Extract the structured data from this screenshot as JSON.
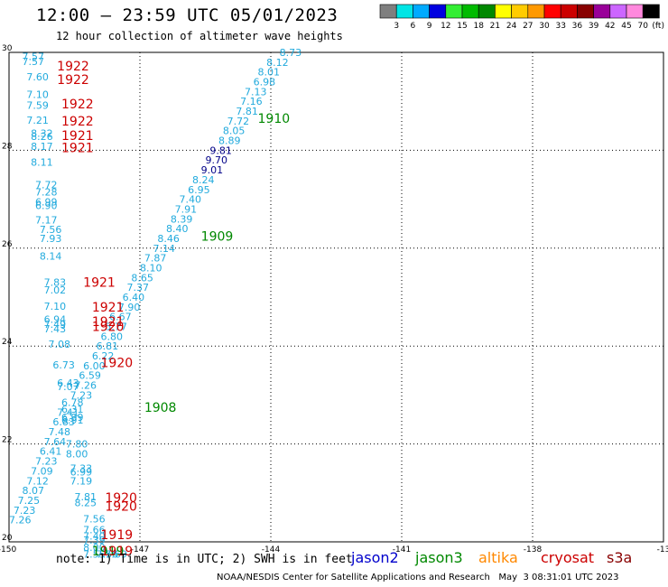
{
  "title": "12:00 – 23:59 UTC 05/01/2023",
  "subtitle": "12 hour collection of altimeter wave heights",
  "legend": {
    "unit_label": "(ft)",
    "bins": [
      {
        "label": "3",
        "color": "#7f7f7f"
      },
      {
        "label": "6",
        "color": "#00e5e5"
      },
      {
        "label": "9",
        "color": "#00aaff"
      },
      {
        "label": "12",
        "color": "#0000e0"
      },
      {
        "label": "15",
        "color": "#33ee33"
      },
      {
        "label": "18",
        "color": "#00bb00"
      },
      {
        "label": "21",
        "color": "#008800"
      },
      {
        "label": "24",
        "color": "#ffff00"
      },
      {
        "label": "27",
        "color": "#ffcc00"
      },
      {
        "label": "30",
        "color": "#ff9900"
      },
      {
        "label": "33",
        "color": "#ff0000"
      },
      {
        "label": "36",
        "color": "#cc0000"
      },
      {
        "label": "39",
        "color": "#880000"
      },
      {
        "label": "42",
        "color": "#990099"
      },
      {
        "label": "45",
        "color": "#cc66ff"
      },
      {
        "label": "70",
        "color": "#ff88dd"
      },
      {
        "label": "",
        "color": "#000000"
      }
    ]
  },
  "axes": {
    "lon_ticks": [
      "-150",
      "-147",
      "-144",
      "-141",
      "-138",
      "-13"
    ],
    "lat_ticks": [
      "30",
      "28",
      "26",
      "24",
      "22",
      "20"
    ],
    "lon_range": [
      -150,
      -135
    ],
    "lat_range": [
      20,
      30
    ]
  },
  "colors": {
    "wave_text": "#22aadd",
    "dark_wave_text": "#000088",
    "jason2": "#0000cc",
    "jason3": "#008800",
    "altika": "#ff8800",
    "cryosat": "#cc0000",
    "s3a": "#880000"
  },
  "observations": [
    {
      "lon": -149.7,
      "lat": 29.92,
      "v": "7.57"
    },
    {
      "lon": -149.7,
      "lat": 29.82,
      "v": "7.57"
    },
    {
      "lon": -149.6,
      "lat": 29.5,
      "v": "7.60"
    },
    {
      "lon": -149.6,
      "lat": 29.14,
      "v": "7.10"
    },
    {
      "lon": -149.6,
      "lat": 28.92,
      "v": "7.59"
    },
    {
      "lon": -149.6,
      "lat": 28.62,
      "v": "7.21"
    },
    {
      "lon": -149.5,
      "lat": 28.35,
      "v": "8.32"
    },
    {
      "lon": -149.5,
      "lat": 28.28,
      "v": "8.26"
    },
    {
      "lon": -149.5,
      "lat": 28.08,
      "v": "8.17"
    },
    {
      "lon": -149.5,
      "lat": 27.76,
      "v": "8.11"
    },
    {
      "lon": -149.4,
      "lat": 27.3,
      "v": "7.72"
    },
    {
      "lon": -149.4,
      "lat": 27.15,
      "v": "7.28"
    },
    {
      "lon": -149.4,
      "lat": 26.95,
      "v": "6.99"
    },
    {
      "lon": -149.4,
      "lat": 26.87,
      "v": "6.90"
    },
    {
      "lon": -149.4,
      "lat": 26.58,
      "v": "7.17"
    },
    {
      "lon": -149.3,
      "lat": 26.38,
      "v": "7.56"
    },
    {
      "lon": -149.3,
      "lat": 26.2,
      "v": "7.93"
    },
    {
      "lon": -149.3,
      "lat": 25.84,
      "v": "8.14"
    },
    {
      "lon": -149.2,
      "lat": 25.3,
      "v": "7.83"
    },
    {
      "lon": -149.2,
      "lat": 25.15,
      "v": "7.02"
    },
    {
      "lon": -149.2,
      "lat": 24.82,
      "v": "7.10"
    },
    {
      "lon": -149.2,
      "lat": 24.55,
      "v": "6.94"
    },
    {
      "lon": -149.2,
      "lat": 24.45,
      "v": "7.49"
    },
    {
      "lon": -149.2,
      "lat": 24.35,
      "v": "7.43"
    },
    {
      "lon": -149.1,
      "lat": 24.04,
      "v": "7.08"
    },
    {
      "lon": -149.0,
      "lat": 23.62,
      "v": "6.73"
    },
    {
      "lon": -148.9,
      "lat": 23.25,
      "v": "6.43"
    },
    {
      "lon": -148.9,
      "lat": 23.17,
      "v": "7.07"
    },
    {
      "lon": -148.8,
      "lat": 22.71,
      "v": "6.31"
    },
    {
      "lon": -148.8,
      "lat": 22.55,
      "v": "6.99"
    },
    {
      "lon": -148.8,
      "lat": 22.49,
      "v": "6.91"
    },
    {
      "lon": -148.7,
      "lat": 22.0,
      "v": "7.80"
    },
    {
      "lon": -148.7,
      "lat": 21.8,
      "v": "8.00"
    },
    {
      "lon": -148.6,
      "lat": 21.5,
      "v": "7.33"
    },
    {
      "lon": -148.6,
      "lat": 21.43,
      "v": "6.99"
    },
    {
      "lon": -148.6,
      "lat": 21.25,
      "v": "7.19"
    },
    {
      "lon": -148.5,
      "lat": 20.92,
      "v": "7.81"
    },
    {
      "lon": -148.5,
      "lat": 20.8,
      "v": "8.25"
    },
    {
      "lon": -148.3,
      "lat": 20.47,
      "v": "7.56"
    },
    {
      "lon": -148.3,
      "lat": 20.25,
      "v": "7.66"
    },
    {
      "lon": -148.3,
      "lat": 20.12,
      "v": "7.40"
    },
    {
      "lon": -148.3,
      "lat": 20.04,
      "v": "7.39"
    },
    {
      "lon": -148.3,
      "lat": 19.89,
      "v": "8.00"
    },
    {
      "lon": -148.3,
      "lat": 19.75,
      "v": "7.55"
    },
    {
      "lon": -148.0,
      "lat": 19.75,
      "v": "7.56"
    },
    {
      "lon": -147.8,
      "lat": 19.75,
      "v": "7.69"
    },
    {
      "lon": -143.8,
      "lat": 30.0,
      "v": "8.73"
    },
    {
      "lon": -144.1,
      "lat": 29.8,
      "v": "8.12"
    },
    {
      "lon": -144.3,
      "lat": 29.6,
      "v": "8.01"
    },
    {
      "lon": -144.4,
      "lat": 29.4,
      "v": "6.98"
    },
    {
      "lon": -144.6,
      "lat": 29.2,
      "v": "7.13"
    },
    {
      "lon": -144.7,
      "lat": 29.0,
      "v": "7.16"
    },
    {
      "lon": -144.8,
      "lat": 28.8,
      "v": "7.81"
    },
    {
      "lon": -145.0,
      "lat": 28.6,
      "v": "7.72"
    },
    {
      "lon": -145.1,
      "lat": 28.4,
      "v": "8.05"
    },
    {
      "lon": -145.2,
      "lat": 28.2,
      "v": "8.89"
    },
    {
      "lon": -145.4,
      "lat": 28.0,
      "v": "9.81",
      "dark": true
    },
    {
      "lon": -145.5,
      "lat": 27.8,
      "v": "9.70",
      "dark": true
    },
    {
      "lon": -145.6,
      "lat": 27.6,
      "v": "9.01",
      "dark": true
    },
    {
      "lon": -145.8,
      "lat": 27.4,
      "v": "8.24"
    },
    {
      "lon": -145.9,
      "lat": 27.2,
      "v": "6.95"
    },
    {
      "lon": -146.1,
      "lat": 27.0,
      "v": "7.40"
    },
    {
      "lon": -146.2,
      "lat": 26.8,
      "v": "7.91"
    },
    {
      "lon": -146.3,
      "lat": 26.6,
      "v": "8.39"
    },
    {
      "lon": -146.4,
      "lat": 26.4,
      "v": "8.40"
    },
    {
      "lon": -146.6,
      "lat": 26.2,
      "v": "8.46"
    },
    {
      "lon": -146.7,
      "lat": 26.0,
      "v": "7.14"
    },
    {
      "lon": -146.9,
      "lat": 25.8,
      "v": "7.87"
    },
    {
      "lon": -147.0,
      "lat": 25.6,
      "v": "8.10"
    },
    {
      "lon": -147.2,
      "lat": 25.4,
      "v": "8.65"
    },
    {
      "lon": -147.3,
      "lat": 25.2,
      "v": "7.37"
    },
    {
      "lon": -147.4,
      "lat": 25.0,
      "v": "6.40"
    },
    {
      "lon": -147.5,
      "lat": 24.8,
      "v": "7.90"
    },
    {
      "lon": -147.7,
      "lat": 24.6,
      "v": "6.67"
    },
    {
      "lon": -147.8,
      "lat": 24.4,
      "v": "5.77"
    },
    {
      "lon": -147.9,
      "lat": 24.2,
      "v": "6.80"
    },
    {
      "lon": -148.0,
      "lat": 24.0,
      "v": "6.81"
    },
    {
      "lon": -148.1,
      "lat": 23.8,
      "v": "6.22"
    },
    {
      "lon": -148.3,
      "lat": 23.6,
      "v": "6.00"
    },
    {
      "lon": -148.4,
      "lat": 23.4,
      "v": "6.59"
    },
    {
      "lon": -148.5,
      "lat": 23.2,
      "v": "7.26"
    },
    {
      "lon": -148.6,
      "lat": 23.0,
      "v": "7.23"
    },
    {
      "lon": -148.8,
      "lat": 22.85,
      "v": "6.78"
    },
    {
      "lon": -148.9,
      "lat": 22.65,
      "v": "7.41"
    },
    {
      "lon": -149.0,
      "lat": 22.45,
      "v": "6.83"
    },
    {
      "lon": -149.1,
      "lat": 22.25,
      "v": "7.48"
    },
    {
      "lon": -149.2,
      "lat": 22.05,
      "v": "7.64"
    },
    {
      "lon": -149.3,
      "lat": 21.85,
      "v": "6.41"
    },
    {
      "lon": -149.4,
      "lat": 21.65,
      "v": "7.23"
    },
    {
      "lon": -149.5,
      "lat": 21.45,
      "v": "7.09"
    },
    {
      "lon": -149.6,
      "lat": 21.25,
      "v": "7.12"
    },
    {
      "lon": -149.7,
      "lat": 21.05,
      "v": "8.07"
    },
    {
      "lon": -149.8,
      "lat": 20.85,
      "v": "7.25"
    },
    {
      "lon": -149.9,
      "lat": 20.65,
      "v": "7.23"
    },
    {
      "lon": -150.0,
      "lat": 20.45,
      "v": "7.26"
    }
  ],
  "track_labels": [
    {
      "lon": -148.9,
      "lat": 29.72,
      "text": "1922",
      "sat": "cryosat"
    },
    {
      "lon": -148.9,
      "lat": 29.45,
      "text": "1922",
      "sat": "cryosat"
    },
    {
      "lon": -148.8,
      "lat": 28.95,
      "text": "1922",
      "sat": "cryosat"
    },
    {
      "lon": -148.8,
      "lat": 28.6,
      "text": "1922",
      "sat": "cryosat"
    },
    {
      "lon": -148.8,
      "lat": 28.3,
      "text": "1921",
      "sat": "cryosat"
    },
    {
      "lon": -148.8,
      "lat": 28.05,
      "text": "1921",
      "sat": "cryosat"
    },
    {
      "lon": -144.3,
      "lat": 28.65,
      "text": "1910",
      "sat": "jason3"
    },
    {
      "lon": -145.6,
      "lat": 26.25,
      "text": "1909",
      "sat": "jason3"
    },
    {
      "lon": -148.3,
      "lat": 25.3,
      "text": "1921",
      "sat": "cryosat"
    },
    {
      "lon": -148.1,
      "lat": 24.8,
      "text": "1921",
      "sat": "cryosat"
    },
    {
      "lon": -148.1,
      "lat": 24.5,
      "text": "1921",
      "sat": "cryosat"
    },
    {
      "lon": -148.1,
      "lat": 24.4,
      "text": "1920",
      "sat": "cryosat"
    },
    {
      "lon": -147.9,
      "lat": 23.66,
      "text": "1920",
      "sat": "cryosat"
    },
    {
      "lon": -146.9,
      "lat": 22.75,
      "text": "1908",
      "sat": "jason3"
    },
    {
      "lon": -147.8,
      "lat": 20.9,
      "text": "1920",
      "sat": "cryosat"
    },
    {
      "lon": -147.8,
      "lat": 20.73,
      "text": "1920",
      "sat": "cryosat"
    },
    {
      "lon": -147.9,
      "lat": 20.15,
      "text": "1919",
      "sat": "cryosat"
    },
    {
      "lon": -148.1,
      "lat": 19.82,
      "text": "1919",
      "sat": "jason3"
    },
    {
      "lon": -147.9,
      "lat": 19.82,
      "text": "1919",
      "sat": "cryosat"
    }
  ],
  "footer": {
    "note": "note: 1) Time is in UTC; 2) SWH is in feet",
    "satellites": [
      {
        "name": "jason2",
        "key": "jason2"
      },
      {
        "name": "jason3",
        "key": "jason3"
      },
      {
        "name": "altika",
        "key": "altika"
      },
      {
        "name": "cryosat",
        "key": "cryosat"
      },
      {
        "name": "s3a",
        "key": "s3a"
      }
    ],
    "credit": "NOAA/NESDIS Center for Satellite Applications and Research",
    "timestamp": "May  3 08:31:01 UTC 2023"
  }
}
